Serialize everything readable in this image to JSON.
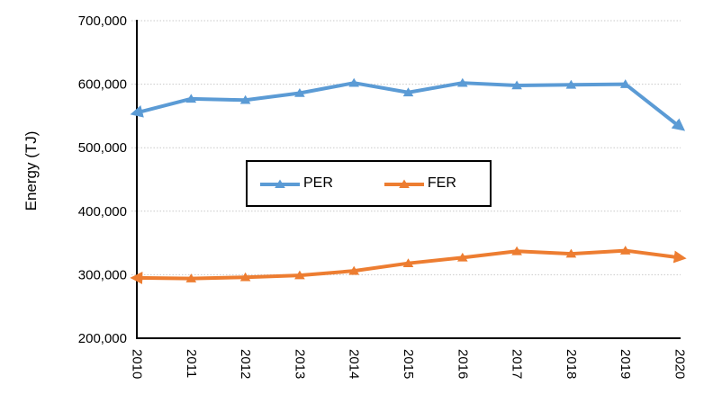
{
  "chart_data": {
    "type": "line",
    "title": "",
    "ylabel": "Energy (TJ)",
    "xlabel": "",
    "categories": [
      "2010",
      "2011",
      "2012",
      "2013",
      "2014",
      "2015",
      "2016",
      "2017",
      "2018",
      "2019",
      "2020"
    ],
    "series": [
      {
        "name": "PER",
        "color": "#5B9BD5",
        "values": [
          555000,
          577000,
          575000,
          586000,
          602000,
          587000,
          602000,
          598000,
          599000,
          600000,
          533000
        ]
      },
      {
        "name": "FER",
        "color": "#ED7D31",
        "values": [
          295000,
          294000,
          296000,
          299000,
          306000,
          318000,
          327000,
          337000,
          333000,
          338000,
          327000
        ]
      }
    ],
    "ylim": [
      200000,
      700000
    ],
    "ytick_step": 100000,
    "ytick_labels": [
      "700,000",
      "600,000",
      "500,000",
      "400,000",
      "300,000",
      "200,000"
    ],
    "grid": true,
    "gridline_color": "#C9C9C9",
    "axis_color": "#000000",
    "legend_position": "inside-top-center",
    "marker": "triangle",
    "line_end_arrows": true
  }
}
